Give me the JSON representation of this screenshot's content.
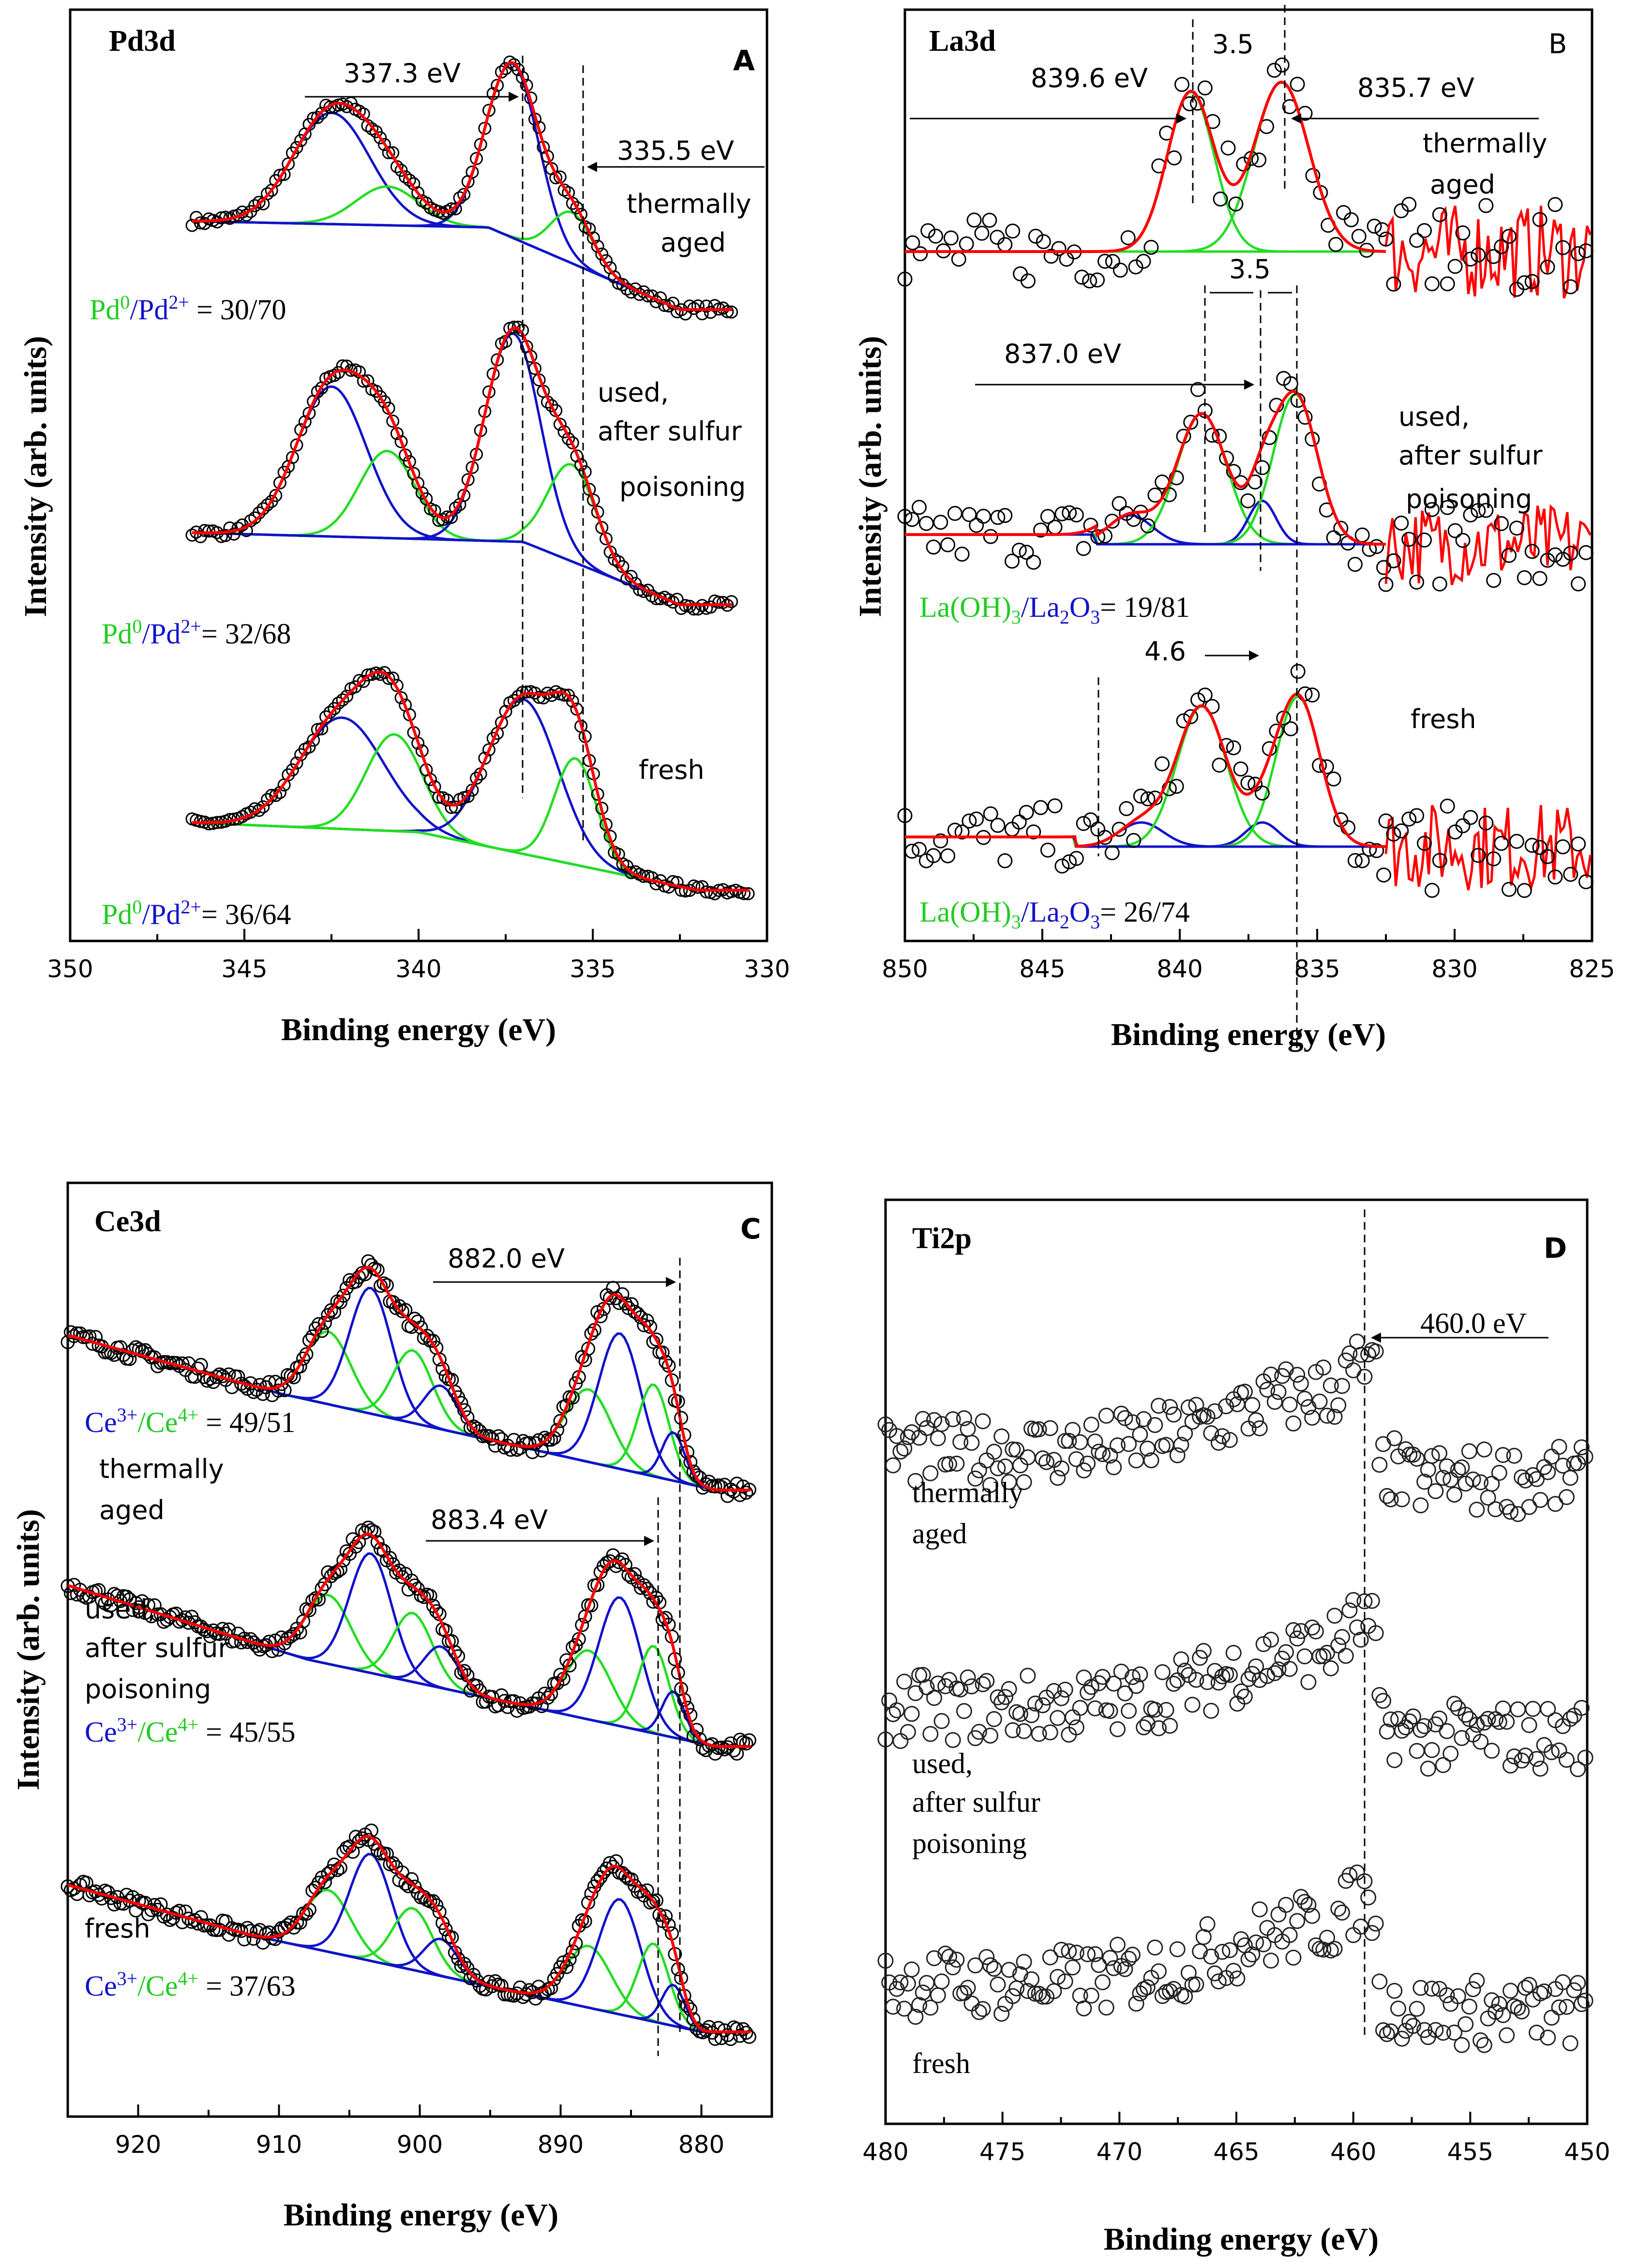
{
  "panels": {
    "A": {
      "letter": "A",
      "title": "Pd3d",
      "xlabel": "Binding energy (eV)",
      "ylabel": "Intensity (arb. units)",
      "xticks": [
        "350",
        "345",
        "340",
        "335",
        "330"
      ],
      "annotations": {
        "peak1": "337.3 eV",
        "peak2": "335.5 eV",
        "trace1_l1": "thermally",
        "trace1_l2": "aged",
        "trace2_l1": "used,",
        "trace2_l2": "after sulfur",
        "trace2_l3": "poisoning",
        "trace3": "fresh"
      },
      "ratios": {
        "r1_prefix": "Pd",
        "r1_sup1": "0",
        "r1_mid": "/Pd",
        "r1_sup2": "2+",
        "r1_val": " = 30/70",
        "r2_prefix": "Pd",
        "r2_sup1": "0",
        "r2_mid": "/Pd",
        "r2_sup2": "2+",
        "r2_val": "= 32/68",
        "r3_prefix": "Pd",
        "r3_sup1": "0",
        "r3_mid": "/Pd",
        "r3_sup2": "2+",
        "r3_val": "= 36/64"
      }
    },
    "B": {
      "letter": "B",
      "title": "La3d",
      "xlabel": "Binding energy (eV)",
      "ylabel": "Intensity (arb. units)",
      "xticks": [
        "850",
        "845",
        "840",
        "835",
        "830",
        "825"
      ],
      "annotations": {
        "peakA": "839.6 eV",
        "peakB": "835.7 eV",
        "gap1": "3.5",
        "gap2": "3.5",
        "gap3": "4.6",
        "peakC": "837.0 eV",
        "trace1_l1": "thermally",
        "trace1_l2": "aged",
        "trace2_l1": "used,",
        "trace2_l2": "after sulfur",
        "trace2_l3": "poisoning",
        "trace3": "fresh"
      },
      "ratios": {
        "r1_a": "La(OH)",
        "r1_a_sub": "3",
        "r1_b": "/La",
        "r1_b_sub1": "2",
        "r1_b2": "O",
        "r1_b_sub2": "3",
        "r1_val": "= 19/81",
        "r2_a": "La(OH)",
        "r2_a_sub": "3",
        "r2_b": "/La",
        "r2_b_sub1": "2",
        "r2_b2": "O",
        "r2_b_sub2": "3",
        "r2_val": "= 26/74"
      }
    },
    "C": {
      "letter": "C",
      "title": "Ce3d",
      "xlabel": "Binding energy (eV)",
      "ylabel": "Intensity (arb. units)",
      "xticks": [
        "920",
        "910",
        "900",
        "890",
        "880"
      ],
      "annotations": {
        "peak1": "882.0 eV",
        "peak2": "883.4 eV",
        "trace1_l1": "thermally",
        "trace1_l2": "aged",
        "trace2_l1": "used,",
        "trace2_l2": "after sulfur",
        "trace2_l3": "poisoning",
        "trace3": "fresh"
      },
      "ratios": {
        "r1_a": "Ce",
        "r1_sup1": "3+",
        "r1_b": "/Ce",
        "r1_sup2": "4+",
        "r1_val": " = 49/51",
        "r2_a": "Ce",
        "r2_sup1": "3+",
        "r2_b": "/Ce",
        "r2_sup2": "4+",
        "r2_val": " = 45/55",
        "r3_a": "Ce",
        "r3_sup1": "3+",
        "r3_b": "/Ce",
        "r3_sup2": "4+",
        "r3_val": " = 37/63"
      }
    },
    "D": {
      "letter": "D",
      "title": "Ti2p",
      "xlabel": "Binding energy (eV)",
      "xticks": [
        "480",
        "475",
        "470",
        "465",
        "460",
        "455",
        "450"
      ],
      "annotations": {
        "peak1": "460.0 eV",
        "trace1_l1": "thermally",
        "trace1_l2": "aged",
        "trace2_l1": "used,",
        "trace2_l2": "after sulfur",
        "trace2_l3": "poisoning",
        "trace3": "fresh"
      }
    }
  },
  "colors": {
    "fit": "#ff0000",
    "pd0_component": "#22dd22",
    "pd2_component": "#1111cc",
    "background": "#1111cc",
    "points": "#000000"
  },
  "chart_data": [
    {
      "type": "scatter",
      "title": "Pd3d",
      "xlabel": "Binding energy (eV)",
      "ylabel": "Intensity (arb. units)",
      "xlim": [
        350,
        330
      ],
      "series": [
        {
          "name": "thermally aged",
          "peaks_eV": [
            342.5,
            340.9,
            337.3,
            335.6
          ],
          "ratio": "Pd0/Pd2+ = 30/70"
        },
        {
          "name": "used, after sulfur poisoning",
          "peaks_eV": [
            342.5,
            340.9,
            337.3,
            335.6
          ],
          "ratio": "Pd0/Pd2+ = 32/68"
        },
        {
          "name": "fresh",
          "peaks_eV": [
            342.2,
            340.8,
            337.0,
            335.5
          ],
          "ratio": "Pd0/Pd2+ = 36/64"
        }
      ],
      "markers_eV": [
        337.3,
        335.5
      ]
    },
    {
      "type": "scatter",
      "title": "La3d",
      "xlabel": "Binding energy (eV)",
      "ylabel": "Intensity (arb. units)",
      "xlim": [
        850,
        825
      ],
      "series": [
        {
          "name": "thermally aged",
          "peaks_eV": [
            839.6,
            835.7
          ]
        },
        {
          "name": "used, after sulfur poisoning",
          "peaks_eV": [
            841.8,
            839.2,
            837.0,
            835.7
          ],
          "ratio": "La(OH)3/La2O3 = 19/81"
        },
        {
          "name": "fresh",
          "peaks_eV": [
            841.4,
            839.2,
            837.0,
            835.7
          ],
          "ratio": "La(OH)3/La2O3 = 26/74"
        }
      ],
      "splittings_eV": [
        3.5,
        3.5,
        4.6
      ]
    },
    {
      "type": "scatter",
      "title": "Ce3d",
      "xlabel": "Binding energy (eV)",
      "ylabel": "Intensity (arb. units)",
      "xlim": [
        925,
        875
      ],
      "series": [
        {
          "name": "thermally aged",
          "peaks_eV": [
            906,
            903.5,
            900.5,
            898.5,
            888,
            885.5,
            883.4,
            882.0
          ],
          "ratio": "Ce3+/Ce4+ = 49/51"
        },
        {
          "name": "used, after sulfur poisoning",
          "peaks_eV": [
            906,
            903.5,
            900.5,
            898.5,
            888,
            885.5,
            883.4,
            882.0
          ],
          "ratio": "Ce3+/Ce4+ = 45/55"
        },
        {
          "name": "fresh",
          "peaks_eV": [
            906,
            903.5,
            900.5,
            898.5,
            888,
            885.5,
            883.4,
            882.0
          ],
          "ratio": "Ce3+/Ce4+ = 37/63"
        }
      ],
      "markers_eV": [
        883.4,
        882.0
      ]
    },
    {
      "type": "scatter",
      "title": "Ti2p",
      "xlabel": "Binding energy (eV)",
      "xlim": [
        480,
        450
      ],
      "series": [
        {
          "name": "thermally aged",
          "peaks_eV": [
            459.5
          ]
        },
        {
          "name": "used, after sulfur poisoning",
          "peaks_eV": [
            459.5
          ]
        },
        {
          "name": "fresh",
          "peaks_eV": [
            459.5
          ]
        }
      ],
      "markers_eV": [
        460.0
      ]
    }
  ]
}
